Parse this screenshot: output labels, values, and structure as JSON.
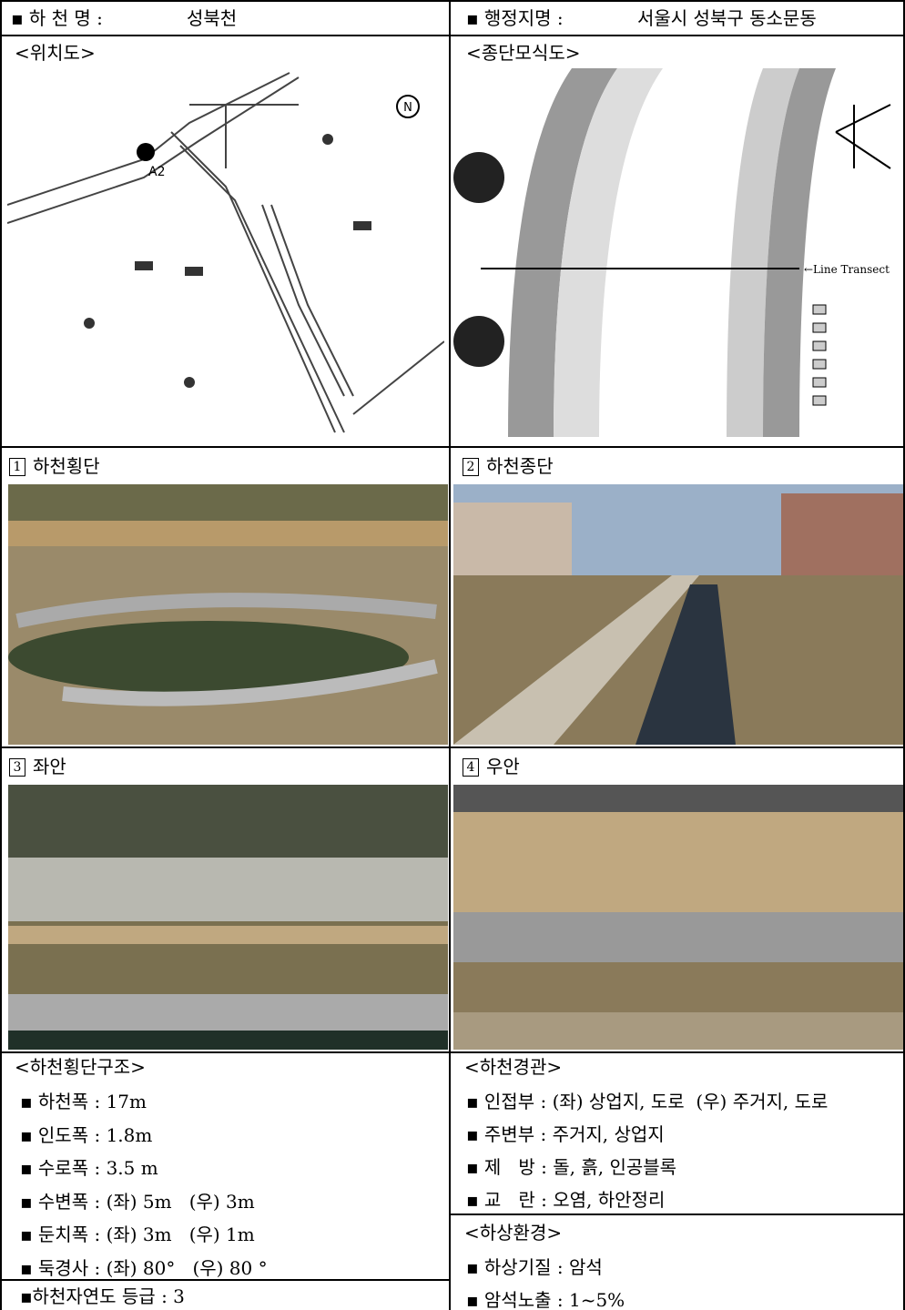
{
  "header": {
    "river_name": {
      "label": "▪ 하 천 명 :",
      "value": "성북천"
    },
    "location": {
      "label": "▪ 행정지명 :",
      "value": "서울시 성북구 동소문동"
    }
  },
  "map": {
    "title": "<위치도>",
    "point_label": "A2",
    "north": "N"
  },
  "diagram": {
    "title": "<종단모식도>",
    "transect": "←Line Transect"
  },
  "photos": [
    {
      "number": "1",
      "label": "하천횡단"
    },
    {
      "number": "2",
      "label": "하천종단"
    },
    {
      "number": "3",
      "label": "좌안"
    },
    {
      "number": "4",
      "label": "우안"
    }
  ],
  "structure": {
    "title": "<하천횡단구조>",
    "items": [
      "▪ 하천폭 : 17m",
      "▪ 인도폭 : 1.8m",
      "▪ 수로폭 : 3.5 m",
      "▪ 수변폭 : (좌) 5m   (우) 3m",
      "▪ 둔치폭 : (좌) 3m   (우) 1m",
      "▪ 둑경사 : (좌) 80°   (우) 80 °"
    ],
    "grade": "▪하천자연도 등급 : 3"
  },
  "landscape": {
    "title": "<하천경관>",
    "items": [
      "▪ 인접부 : (좌) 상업지, 도로  (우) 주거지, 도로",
      "▪ 주변부 : 주거지, 상업지",
      "▪ 제   방 : 돌, 흙, 인공블록",
      "▪ 교   란 : 오염, 하안정리"
    ]
  },
  "bed": {
    "title": "<하상환경>",
    "items": [
      "▪ 하상기질 : 암석",
      "▪ 암석노출 : 1~5%"
    ]
  }
}
